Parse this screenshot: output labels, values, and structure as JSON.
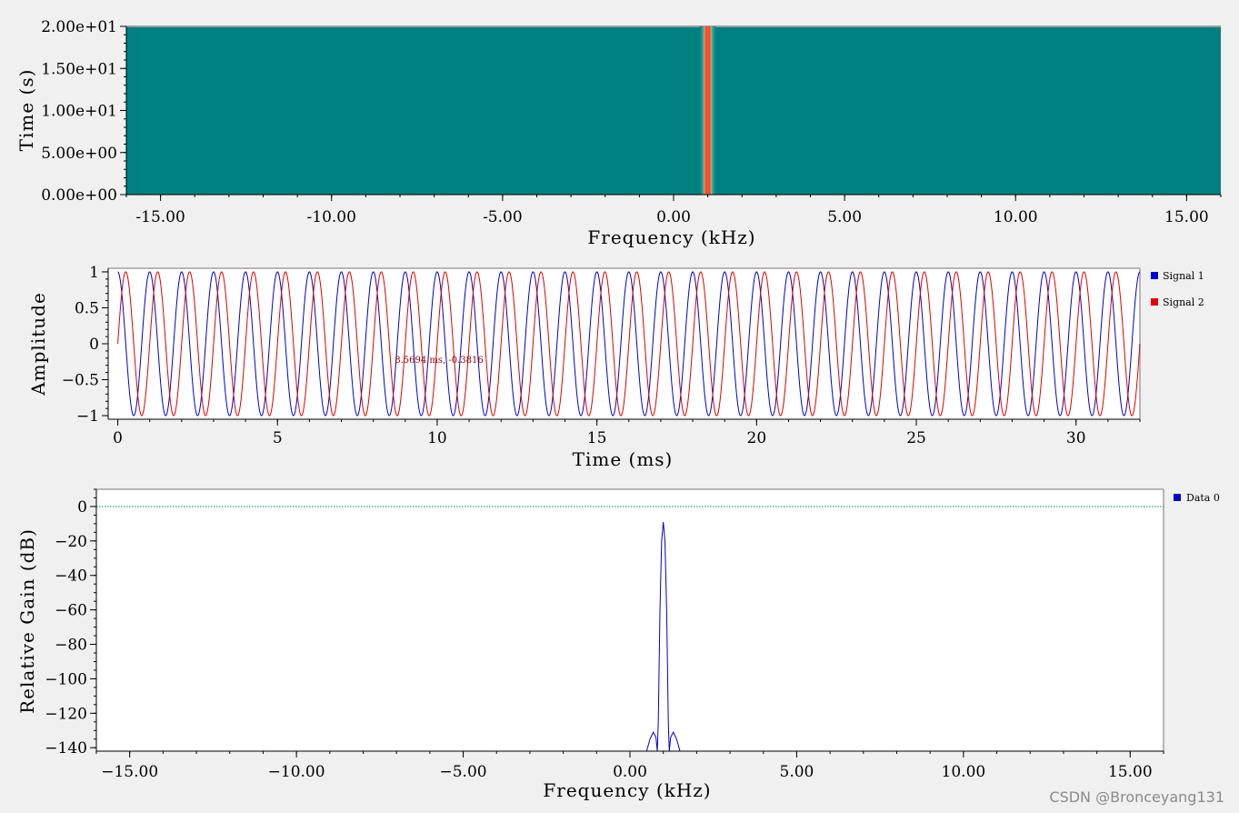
{
  "chart_data": [
    {
      "type": "heatmap",
      "title": "",
      "xlabel": "Frequency (kHz)",
      "ylabel": "Time (s)",
      "xlim": [
        -16,
        16
      ],
      "ylim": [
        0,
        20
      ],
      "x_ticks": [
        -15,
        -10,
        -5,
        0,
        5,
        10,
        15
      ],
      "x_tick_labels": [
        "-15.00",
        "-10.00",
        "-5.00",
        "0.00",
        "5.00",
        "10.00",
        "15.00"
      ],
      "y_ticks": [
        0,
        5,
        10,
        15,
        20
      ],
      "y_tick_labels": [
        "0.00e+00",
        "5.00e+00",
        "1.00e+01",
        "1.50e+01",
        "2.00e+01"
      ],
      "background_color": "#008080",
      "peak_frequency_khz": 1.0,
      "peak_color": "#ff3b1f"
    },
    {
      "type": "line",
      "title": "",
      "xlabel": "Time (ms)",
      "ylabel": "Amplitude",
      "xlim": [
        -0.3,
        32
      ],
      "ylim": [
        -1.05,
        1.05
      ],
      "x_ticks": [
        0,
        5,
        10,
        15,
        20,
        25,
        30
      ],
      "x_tick_labels": [
        "0",
        "5",
        "10",
        "15",
        "20",
        "25",
        "30"
      ],
      "y_ticks": [
        1,
        0.5,
        0,
        -0.5,
        -1
      ],
      "y_tick_labels": [
        "1",
        "0.5",
        "0",
        "−0.5",
        "−1"
      ],
      "legend": "top-right",
      "series": [
        {
          "name": "Signal 1",
          "color": "#0000cc",
          "function": "cos",
          "frequency_khz": 1.0,
          "phase_ms": 0.0
        },
        {
          "name": "Signal 2",
          "color": "#e00000",
          "function": "sin",
          "frequency_khz": 1.0,
          "phase_ms": 0.0
        }
      ],
      "cursor_readout": "8.5694 ms, -0.3816"
    },
    {
      "type": "line",
      "title": "",
      "xlabel": "Frequency (kHz)",
      "ylabel": "Relative Gain (dB)",
      "xlim": [
        -16,
        16
      ],
      "ylim": [
        -142,
        10
      ],
      "x_ticks": [
        -15,
        -10,
        -5,
        0,
        5,
        10,
        15
      ],
      "x_tick_labels": [
        "−15.00",
        "−10.00",
        "−5.00",
        "0.00",
        "5.00",
        "10.00",
        "15.00"
      ],
      "y_ticks": [
        0,
        -20,
        -40,
        -60,
        -80,
        -100,
        -120,
        -140
      ],
      "y_tick_labels": [
        "0",
        "−20",
        "−40",
        "−60",
        "−80",
        "−100",
        "−120",
        "−140"
      ],
      "legend": "top-right",
      "reference_line_db": 0,
      "series": [
        {
          "name": "Data 0",
          "color": "#0000cc",
          "x": [
            0.5,
            0.6,
            0.7,
            0.78,
            0.82,
            0.85,
            0.9,
            0.95,
            1.0,
            1.05,
            1.1,
            1.15,
            1.18,
            1.22,
            1.3,
            1.4,
            1.5
          ],
          "y": [
            -142,
            -135,
            -131,
            -134,
            -142,
            -125,
            -60,
            -20,
            -9,
            -20,
            -60,
            -125,
            -142,
            -134,
            -131,
            -135,
            -142
          ]
        }
      ]
    }
  ],
  "watermark": "CSDN @Bronceyang131"
}
